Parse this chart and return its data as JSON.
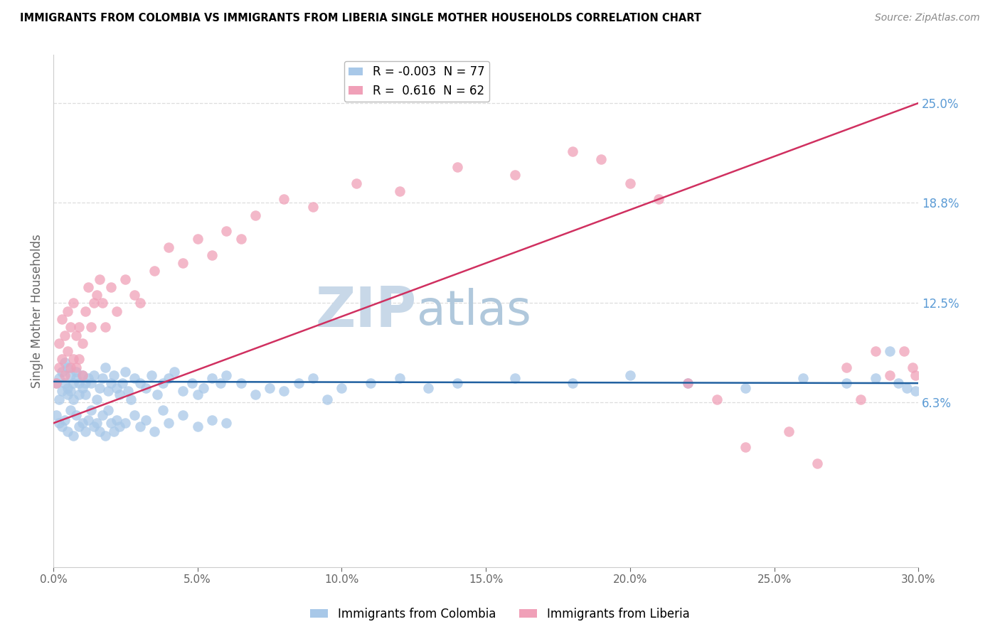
{
  "title": "IMMIGRANTS FROM COLOMBIA VS IMMIGRANTS FROM LIBERIA SINGLE MOTHER HOUSEHOLDS CORRELATION CHART",
  "source": "Source: ZipAtlas.com",
  "xlabel_colombia": "Immigrants from Colombia",
  "xlabel_liberia": "Immigrants from Liberia",
  "ylabel": "Single Mother Households",
  "xlim": [
    0.0,
    30.0
  ],
  "ylim": [
    -4.0,
    28.0
  ],
  "right_yticks": [
    6.3,
    12.5,
    18.8,
    25.0
  ],
  "xticks": [
    0.0,
    5.0,
    10.0,
    15.0,
    20.0,
    25.0,
    30.0
  ],
  "colombia_color": "#a8c8e8",
  "liberia_color": "#f0a0b8",
  "colombia_line_color": "#2060a0",
  "liberia_line_color": "#d03060",
  "colombia_R": -0.003,
  "colombia_N": 77,
  "liberia_R": 0.616,
  "liberia_N": 62,
  "watermark_zip": "ZIP",
  "watermark_atlas": "atlas",
  "watermark_color_zip": "#c8d8e8",
  "watermark_color_atlas": "#b0c8dc",
  "grid_color": "#dddddd",
  "colombia_x": [
    0.1,
    0.2,
    0.2,
    0.3,
    0.3,
    0.4,
    0.4,
    0.5,
    0.5,
    0.5,
    0.6,
    0.6,
    0.7,
    0.7,
    0.8,
    0.8,
    0.9,
    0.9,
    1.0,
    1.0,
    1.1,
    1.1,
    1.2,
    1.3,
    1.4,
    1.5,
    1.6,
    1.7,
    1.8,
    1.9,
    2.0,
    2.1,
    2.2,
    2.3,
    2.4,
    2.5,
    2.6,
    2.7,
    2.8,
    3.0,
    3.2,
    3.4,
    3.6,
    3.8,
    4.0,
    4.2,
    4.5,
    4.8,
    5.0,
    5.2,
    5.5,
    5.8,
    6.0,
    6.5,
    7.0,
    7.5,
    8.0,
    8.5,
    9.0,
    9.5,
    10.0,
    11.0,
    12.0,
    13.0,
    14.0,
    16.0,
    18.0,
    20.0,
    22.0,
    24.0,
    26.0,
    27.5,
    28.5,
    29.0,
    29.3,
    29.6,
    29.9
  ],
  "colombia_y": [
    7.5,
    7.8,
    6.5,
    8.2,
    7.0,
    7.5,
    8.8,
    6.8,
    7.2,
    8.5,
    7.0,
    8.0,
    6.5,
    7.5,
    7.8,
    8.2,
    6.8,
    7.5,
    7.2,
    8.0,
    7.5,
    6.8,
    7.8,
    7.5,
    8.0,
    6.5,
    7.2,
    7.8,
    8.5,
    7.0,
    7.5,
    8.0,
    7.2,
    6.8,
    7.5,
    8.2,
    7.0,
    6.5,
    7.8,
    7.5,
    7.2,
    8.0,
    6.8,
    7.5,
    7.8,
    8.2,
    7.0,
    7.5,
    6.8,
    7.2,
    7.8,
    7.5,
    8.0,
    7.5,
    6.8,
    7.2,
    7.0,
    7.5,
    7.8,
    6.5,
    7.2,
    7.5,
    7.8,
    7.2,
    7.5,
    7.8,
    7.5,
    8.0,
    7.5,
    7.2,
    7.8,
    7.5,
    7.8,
    9.5,
    7.5,
    7.2,
    7.0
  ],
  "colombia_y_below": [
    0.1,
    0.2,
    0.3,
    0.4,
    0.5,
    0.6,
    0.7,
    0.8,
    0.9,
    1.0,
    1.1,
    1.2,
    1.3,
    1.4,
    1.5,
    1.6,
    1.7,
    1.8,
    1.9,
    2.0,
    2.1,
    2.2,
    2.3,
    2.5,
    2.8,
    3.0,
    3.2,
    3.5,
    3.8,
    4.0,
    4.5,
    5.0,
    5.5,
    6.0
  ],
  "colombia_y_below_vals": [
    5.5,
    5.0,
    4.8,
    5.2,
    4.5,
    5.8,
    4.2,
    5.5,
    4.8,
    5.0,
    4.5,
    5.2,
    5.8,
    4.8,
    5.0,
    4.5,
    5.5,
    4.2,
    5.8,
    5.0,
    4.5,
    5.2,
    4.8,
    5.0,
    5.5,
    4.8,
    5.2,
    4.5,
    5.8,
    5.0,
    5.5,
    4.8,
    5.2,
    5.0
  ],
  "liberia_x": [
    0.1,
    0.2,
    0.2,
    0.3,
    0.3,
    0.4,
    0.4,
    0.5,
    0.5,
    0.6,
    0.6,
    0.7,
    0.7,
    0.8,
    0.8,
    0.9,
    0.9,
    1.0,
    1.0,
    1.1,
    1.2,
    1.3,
    1.4,
    1.5,
    1.6,
    1.7,
    1.8,
    2.0,
    2.2,
    2.5,
    2.8,
    3.0,
    3.5,
    4.0,
    4.5,
    5.0,
    5.5,
    6.0,
    6.5,
    7.0,
    8.0,
    9.0,
    10.5,
    12.0,
    14.0,
    16.0,
    18.0,
    19.0,
    20.0,
    21.0,
    22.0,
    23.0,
    24.0,
    25.5,
    26.5,
    27.5,
    28.0,
    28.5,
    29.0,
    29.5,
    29.8,
    29.9
  ],
  "liberia_y": [
    7.5,
    8.5,
    10.0,
    9.0,
    11.5,
    8.0,
    10.5,
    9.5,
    12.0,
    8.5,
    11.0,
    9.0,
    12.5,
    10.5,
    8.5,
    11.0,
    9.0,
    8.0,
    10.0,
    12.0,
    13.5,
    11.0,
    12.5,
    13.0,
    14.0,
    12.5,
    11.0,
    13.5,
    12.0,
    14.0,
    13.0,
    12.5,
    14.5,
    16.0,
    15.0,
    16.5,
    15.5,
    17.0,
    16.5,
    18.0,
    19.0,
    18.5,
    20.0,
    19.5,
    21.0,
    20.5,
    22.0,
    21.5,
    20.0,
    19.0,
    7.5,
    6.5,
    3.5,
    4.5,
    2.5,
    8.5,
    6.5,
    9.5,
    8.0,
    9.5,
    8.5,
    8.0
  ]
}
